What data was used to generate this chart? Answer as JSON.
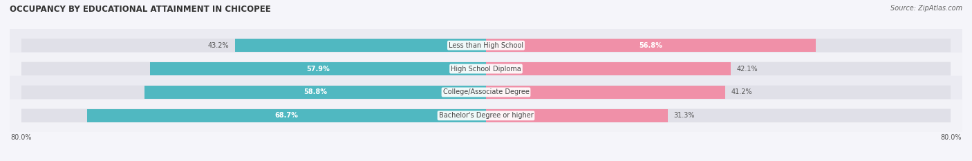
{
  "title": "OCCUPANCY BY EDUCATIONAL ATTAINMENT IN CHICOPEE",
  "source": "Source: ZipAtlas.com",
  "categories": [
    "Less than High School",
    "High School Diploma",
    "College/Associate Degree",
    "Bachelor's Degree or higher"
  ],
  "owner_values": [
    43.2,
    57.9,
    58.8,
    68.7
  ],
  "renter_values": [
    56.8,
    42.1,
    41.2,
    31.3
  ],
  "owner_color": "#50b8c1",
  "renter_color": "#f090a8",
  "bar_track_color": "#e0e0e8",
  "row_bg_even": "#f0f0f5",
  "row_bg_odd": "#e8e8f0",
  "x_left_label": "80.0%",
  "x_right_label": "80.0%",
  "title_fontsize": 8.5,
  "source_fontsize": 7,
  "bar_label_fontsize": 7,
  "category_fontsize": 7,
  "axis_fontsize": 7,
  "legend_fontsize": 7.5,
  "background_color": "#f5f5fa"
}
